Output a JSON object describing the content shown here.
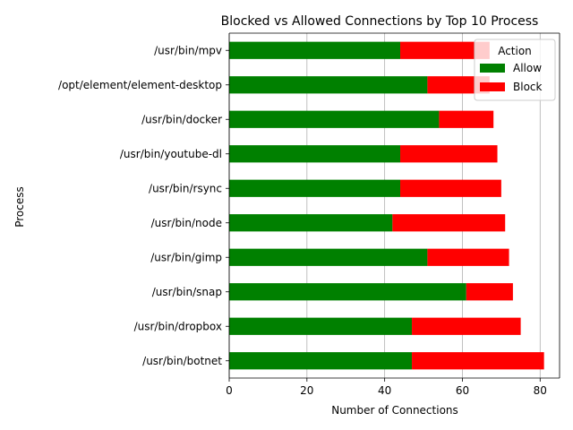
{
  "chart_data": {
    "type": "bar",
    "orientation": "horizontal",
    "stacked": true,
    "title": "Blocked vs Allowed Connections by Top 10 Process",
    "xlabel": "Number of Connections",
    "ylabel": "Process",
    "xlim": [
      0,
      85
    ],
    "xticks": [
      0,
      20,
      40,
      60,
      80
    ],
    "grid": "x",
    "legend": {
      "title": "Action",
      "placement": "top-right"
    },
    "categories": [
      "/usr/bin/botnet",
      "/usr/bin/dropbox",
      "/usr/bin/snap",
      "/usr/bin/gimp",
      "/usr/bin/node",
      "/usr/bin/rsync",
      "/usr/bin/youtube-dl",
      "/usr/bin/docker",
      "/opt/element/element-desktop",
      "/usr/bin/mpv"
    ],
    "series": [
      {
        "name": "Allow",
        "color": "#008000",
        "values": [
          47,
          47,
          61,
          51,
          42,
          44,
          44,
          54,
          51,
          44
        ]
      },
      {
        "name": "Block",
        "color": "#ff0000",
        "values": [
          34,
          28,
          12,
          21,
          29,
          26,
          25,
          14,
          16,
          23
        ]
      }
    ]
  }
}
